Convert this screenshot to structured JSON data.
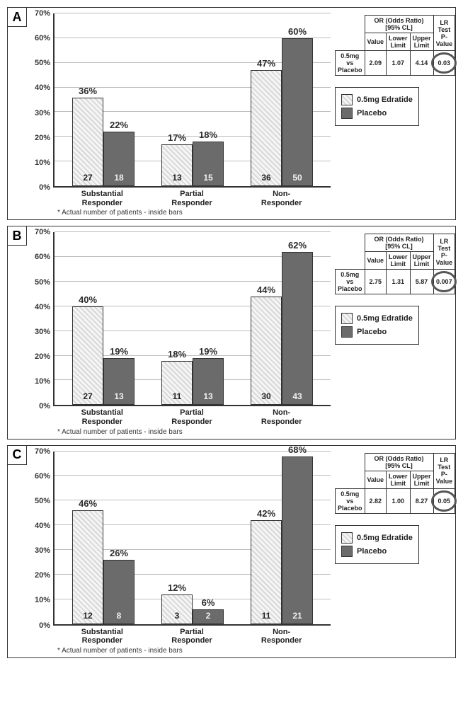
{
  "colors": {
    "bar_hatch_bg": "#f5f5f5",
    "bar_hatch_stripe": "#d8d8d8",
    "bar_solid": "#6b6b6b",
    "border": "#333333",
    "grid": "#bdbdbd",
    "bg": "#ffffff",
    "text": "#222222"
  },
  "axis": {
    "ylim": [
      0,
      70
    ],
    "ytick_step": 10,
    "ticks": [
      "0%",
      "10%",
      "20%",
      "30%",
      "40%",
      "50%",
      "60%",
      "70%"
    ]
  },
  "legend": {
    "a": "0.5mg Edratide",
    "b": "Placebo"
  },
  "categories": [
    {
      "l1": "Substantial",
      "l2": "Responder"
    },
    {
      "l1": "Partial",
      "l2": "Responder"
    },
    {
      "l1": "Non-",
      "l2": "Responder"
    }
  ],
  "or_header": {
    "title": "OR (Odds Ratio)",
    "sub": "[95% CL]",
    "c1": "Value",
    "c2": "Lower Limit",
    "c3": "Upper Limit",
    "c4": "LR Test P-Value",
    "row": "0.5mg vs Placebo"
  },
  "note": "* Actual number of patients - inside bars",
  "panels": {
    "A": {
      "label": "A",
      "bars": [
        {
          "pa": "36%",
          "va": 36,
          "na": "27",
          "pb": "22%",
          "vb": 22,
          "nb": "18"
        },
        {
          "pa": "17%",
          "va": 17,
          "na": "13",
          "pb": "18%",
          "vb": 18,
          "nb": "15"
        },
        {
          "pa": "47%",
          "va": 47,
          "na": "36",
          "pb": "60%",
          "vb": 60,
          "nb": "50"
        }
      ],
      "or": {
        "val": "2.09",
        "lo": "1.07",
        "hi": "4.14",
        "p": "0.03"
      }
    },
    "B": {
      "label": "B",
      "bars": [
        {
          "pa": "40%",
          "va": 40,
          "na": "27",
          "pb": "19%",
          "vb": 19,
          "nb": "13"
        },
        {
          "pa": "18%",
          "va": 18,
          "na": "11",
          "pb": "19%",
          "vb": 19,
          "nb": "13"
        },
        {
          "pa": "44%",
          "va": 44,
          "na": "30",
          "pb": "62%",
          "vb": 62,
          "nb": "43"
        }
      ],
      "or": {
        "val": "2.75",
        "lo": "1.31",
        "hi": "5.87",
        "p": "0.007"
      }
    },
    "C": {
      "label": "C",
      "bars": [
        {
          "pa": "46%",
          "va": 46,
          "na": "12",
          "pb": "26%",
          "vb": 26,
          "nb": "8"
        },
        {
          "pa": "12%",
          "va": 12,
          "na": "3",
          "pb": "6%",
          "vb": 6,
          "nb": "2"
        },
        {
          "pa": "42%",
          "va": 42,
          "na": "11",
          "pb": "68%",
          "vb": 68,
          "nb": "21"
        }
      ],
      "or": {
        "val": "2.82",
        "lo": "1.00",
        "hi": "8.27",
        "p": "0.05"
      }
    }
  }
}
